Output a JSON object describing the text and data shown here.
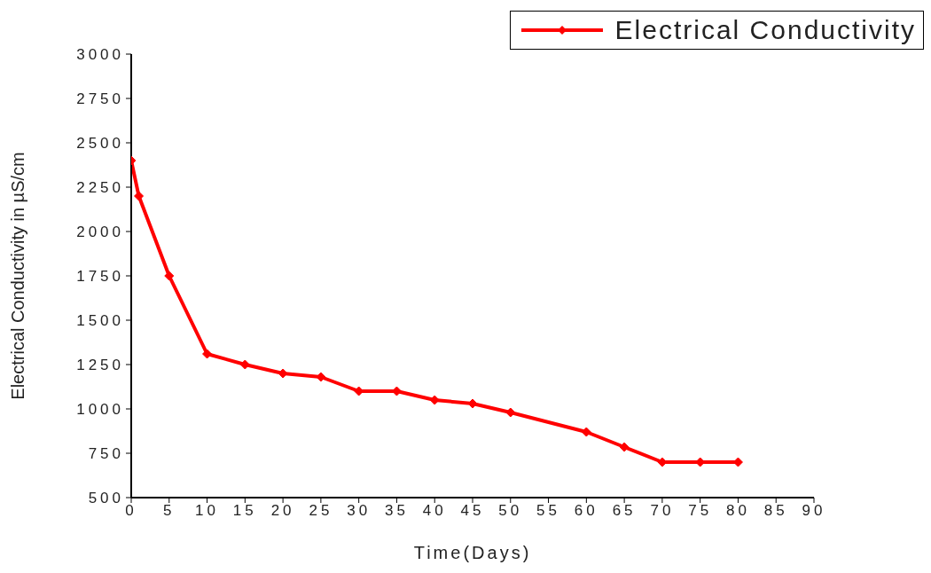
{
  "chart_data": {
    "type": "line",
    "xlabel": "Time(Days)",
    "ylabel": "Electrical Conductivity in µS/cm",
    "x": [
      0,
      1,
      5,
      10,
      15,
      20,
      25,
      30,
      35,
      40,
      45,
      50,
      60,
      65,
      70,
      75,
      80
    ],
    "series": [
      {
        "name": "Electrical Conductivity",
        "color": "#ff0000",
        "values": [
          2400,
          2200,
          1750,
          1310,
          1250,
          1200,
          1180,
          1100,
          1100,
          1050,
          1030,
          980,
          870,
          785,
          700,
          700,
          700
        ]
      }
    ],
    "xlim": [
      0,
      90
    ],
    "xticks": [
      0,
      5,
      10,
      15,
      20,
      25,
      30,
      35,
      40,
      45,
      50,
      55,
      60,
      65,
      70,
      75,
      80,
      85,
      90
    ],
    "ylim": [
      500,
      3000
    ],
    "yticks": [
      500,
      750,
      1000,
      1250,
      1500,
      1750,
      2000,
      2250,
      2500,
      2750,
      3000
    ],
    "legend": "top right",
    "marker": "diamond",
    "line_style": "solid",
    "grid": false
  }
}
